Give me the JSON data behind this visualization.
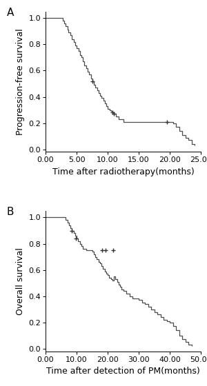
{
  "panel_A": {
    "label": "A",
    "ylabel": "Progression-free survival",
    "xlabel": "Time after radiotherapy(months)",
    "xlim": [
      0,
      25
    ],
    "ylim": [
      -0.02,
      1.05
    ],
    "xticks": [
      0.0,
      5.0,
      10.0,
      15.0,
      20.0,
      25.0
    ],
    "yticks": [
      0.0,
      0.2,
      0.4,
      0.6,
      0.8,
      1.0
    ],
    "xtick_labels": [
      "0.00",
      "5.00",
      "10.00",
      "15.00",
      "20.00",
      "25.00"
    ],
    "ytick_labels": [
      "0.0",
      "0.2",
      "0.4",
      "0.6",
      "0.8",
      "1.0"
    ],
    "step_times": [
      0.0,
      2.5,
      2.8,
      3.0,
      3.2,
      3.5,
      3.7,
      4.0,
      4.2,
      4.5,
      4.8,
      5.0,
      5.3,
      5.5,
      5.8,
      6.0,
      6.2,
      6.5,
      6.8,
      7.0,
      7.3,
      7.5,
      7.8,
      8.0,
      8.3,
      8.5,
      8.8,
      9.0,
      9.3,
      9.5,
      9.8,
      10.0,
      10.3,
      10.5,
      10.8,
      11.0,
      11.3,
      11.8,
      12.5,
      15.0,
      19.0,
      20.5,
      21.0,
      21.5,
      22.0,
      22.5,
      23.0,
      23.5,
      24.0
    ],
    "step_survival": [
      1.0,
      1.0,
      0.98,
      0.96,
      0.94,
      0.91,
      0.89,
      0.87,
      0.84,
      0.82,
      0.79,
      0.77,
      0.75,
      0.72,
      0.7,
      0.67,
      0.64,
      0.62,
      0.59,
      0.57,
      0.54,
      0.52,
      0.49,
      0.47,
      0.45,
      0.43,
      0.41,
      0.39,
      0.37,
      0.35,
      0.33,
      0.31,
      0.3,
      0.29,
      0.28,
      0.27,
      0.25,
      0.23,
      0.21,
      0.21,
      0.21,
      0.2,
      0.17,
      0.14,
      0.11,
      0.09,
      0.07,
      0.04,
      0.03
    ],
    "censor_times": [
      7.5,
      10.8,
      11.0,
      19.5
    ],
    "censor_survival": [
      0.52,
      0.28,
      0.27,
      0.21
    ],
    "line_color": "#4d4d4d",
    "censor_color": "#333333"
  },
  "panel_B": {
    "label": "B",
    "ylabel": "Overall survival",
    "xlabel": "Time after detection of PM(months)",
    "xlim": [
      0,
      50
    ],
    "ylim": [
      -0.02,
      1.05
    ],
    "xticks": [
      0.0,
      10.0,
      20.0,
      30.0,
      40.0,
      50.0
    ],
    "yticks": [
      0.0,
      0.2,
      0.4,
      0.6,
      0.8,
      1.0
    ],
    "xtick_labels": [
      "0.00",
      "10.00",
      "20.00",
      "30.00",
      "40.00",
      "50.00"
    ],
    "ytick_labels": [
      "0.0",
      "0.2",
      "0.4",
      "0.6",
      "0.8",
      "1.0"
    ],
    "step_times": [
      0.0,
      5.5,
      6.5,
      7.0,
      7.5,
      8.0,
      8.5,
      9.0,
      9.5,
      10.0,
      10.5,
      11.0,
      11.5,
      12.0,
      13.0,
      14.0,
      15.0,
      15.5,
      16.0,
      16.5,
      17.0,
      17.5,
      18.0,
      18.5,
      19.0,
      19.5,
      20.0,
      20.5,
      21.0,
      21.5,
      22.0,
      22.5,
      23.0,
      23.5,
      24.0,
      24.5,
      25.0,
      26.0,
      27.0,
      28.0,
      29.0,
      30.0,
      31.0,
      32.0,
      33.0,
      34.0,
      35.0,
      36.0,
      37.0,
      38.0,
      39.0,
      40.0,
      41.0,
      42.0,
      43.0,
      44.0,
      45.0,
      46.0,
      47.0
    ],
    "step_survival": [
      1.0,
      1.0,
      0.98,
      0.96,
      0.94,
      0.92,
      0.9,
      0.88,
      0.86,
      0.84,
      0.82,
      0.8,
      0.78,
      0.76,
      0.75,
      0.75,
      0.74,
      0.72,
      0.7,
      0.68,
      0.66,
      0.65,
      0.63,
      0.61,
      0.59,
      0.57,
      0.56,
      0.54,
      0.53,
      0.52,
      0.55,
      0.53,
      0.51,
      0.49,
      0.47,
      0.45,
      0.44,
      0.42,
      0.4,
      0.38,
      0.38,
      0.37,
      0.35,
      0.34,
      0.32,
      0.3,
      0.28,
      0.26,
      0.24,
      0.22,
      0.21,
      0.2,
      0.17,
      0.14,
      0.1,
      0.07,
      0.05,
      0.03,
      0.02
    ],
    "censor_times": [
      8.5,
      9.8,
      18.2,
      19.3,
      21.8
    ],
    "censor_survival": [
      0.9,
      0.84,
      0.75,
      0.75,
      0.75
    ],
    "line_color": "#4d4d4d",
    "censor_color": "#333333"
  },
  "fig_bg": "#ffffff",
  "font_size": 8,
  "label_fontsize": 9,
  "tick_fontsize": 8,
  "panel_label_fontsize": 11
}
